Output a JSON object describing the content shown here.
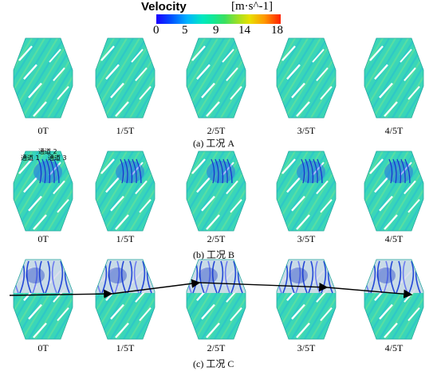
{
  "legend": {
    "title": "Velocity",
    "unit": "[m·s^-1]",
    "ticks": [
      "0",
      "5",
      "9",
      "14",
      "18"
    ],
    "colors": [
      "#1a00ff",
      "#00b4ff",
      "#10e89a",
      "#e8e000",
      "#ff2000"
    ]
  },
  "rows": [
    {
      "id": "A",
      "labels": [
        "0T",
        "1/5T",
        "2/5T",
        "3/5T",
        "4/5T"
      ],
      "caption": "(a)   工况 A"
    },
    {
      "id": "B",
      "labels": [
        "0T",
        "1/5T",
        "2/5T",
        "3/5T",
        "4/5T"
      ],
      "caption": "(b)   工况 B",
      "channel_labels": [
        "通道 1",
        "通道 2",
        "通道 3"
      ]
    },
    {
      "id": "C",
      "labels": [
        "0T",
        "1/5T",
        "2/5T",
        "3/5T",
        "4/5T"
      ],
      "caption": "(c)   工况 C"
    }
  ]
}
